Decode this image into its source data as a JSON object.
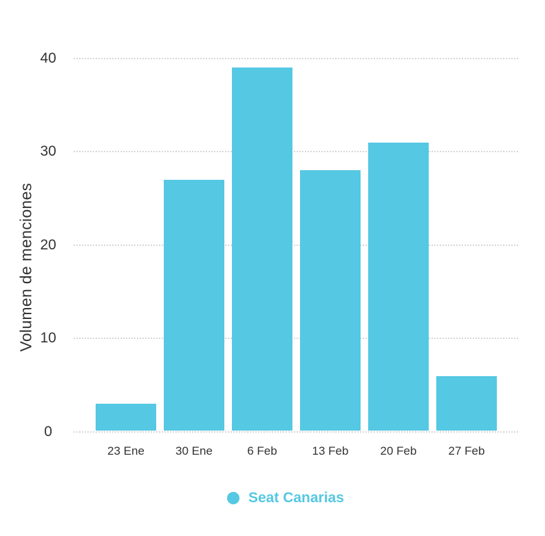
{
  "chart_data": {
    "type": "bar",
    "title": "",
    "ylabel": "Volumen de menciones",
    "xlabel": "",
    "categories": [
      "23 Ene",
      "30 Ene",
      "6 Feb",
      "13 Feb",
      "20 Feb",
      "27 Feb"
    ],
    "series": [
      {
        "name": "Seat Canarias",
        "values": [
          3,
          27,
          39,
          28,
          31,
          6
        ]
      }
    ],
    "ylim": [
      0,
      40
    ],
    "yticks": [
      0,
      10,
      20,
      30,
      40
    ],
    "grid": "horizontal-dotted",
    "legend_position": "bottom-center",
    "colors": {
      "bar": "#55C8E3",
      "legend_text": "#55C8E3",
      "grid": "#D6D6D6",
      "axis_text": "#333333",
      "background": "#FFFFFF"
    }
  }
}
